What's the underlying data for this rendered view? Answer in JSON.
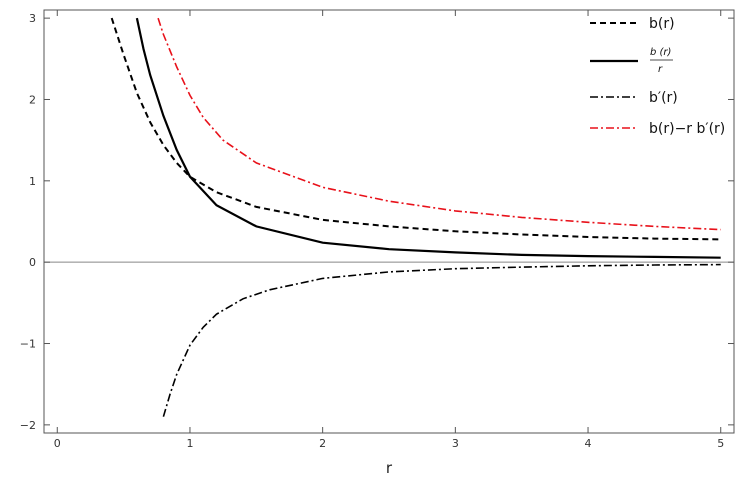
{
  "chart_data": {
    "type": "line",
    "xlabel": "r",
    "xlim": [
      -0.1,
      5.1
    ],
    "ylim": [
      -2.1,
      3.1
    ],
    "xticks": [
      0,
      1,
      2,
      3,
      4,
      5
    ],
    "yticks": [
      -2,
      -1,
      0,
      1,
      2,
      3
    ],
    "xtick_labels": [
      "0",
      "1",
      "2",
      "3",
      "4",
      "5"
    ],
    "ytick_labels": [
      "−2",
      "−1",
      "0",
      "1",
      "2",
      "3"
    ],
    "grid": false,
    "zero_line": true,
    "legend_position": "top-right",
    "series": [
      {
        "name": "b(r)",
        "style": "dashed",
        "color": "#000000",
        "x": [
          0.41,
          0.5,
          0.6,
          0.7,
          0.8,
          0.9,
          1.0,
          1.2,
          1.5,
          2.0,
          2.5,
          3.0,
          3.5,
          4.0,
          4.5,
          5.0
        ],
        "y": [
          3.0,
          2.55,
          2.08,
          1.72,
          1.44,
          1.22,
          1.05,
          0.86,
          0.68,
          0.52,
          0.44,
          0.38,
          0.34,
          0.31,
          0.29,
          0.28
        ]
      },
      {
        "name_top": "b (r)",
        "name_bottom": "r",
        "style": "solid",
        "color": "#000000",
        "x": [
          0.6,
          0.65,
          0.7,
          0.8,
          0.9,
          1.0,
          1.2,
          1.5,
          2.0,
          2.5,
          3.0,
          3.5,
          4.0,
          4.5,
          5.0
        ],
        "y": [
          3.0,
          2.62,
          2.3,
          1.8,
          1.38,
          1.05,
          0.7,
          0.44,
          0.24,
          0.16,
          0.12,
          0.09,
          0.075,
          0.065,
          0.055
        ]
      },
      {
        "name": "b′(r)",
        "style": "dashdot",
        "color": "#000000",
        "x": [
          0.8,
          0.85,
          0.9,
          1.0,
          1.1,
          1.2,
          1.4,
          1.6,
          2.0,
          2.5,
          3.0,
          3.5,
          4.0,
          4.5,
          5.0
        ],
        "y": [
          -1.9,
          -1.62,
          -1.38,
          -1.02,
          -0.8,
          -0.64,
          -0.45,
          -0.34,
          -0.2,
          -0.12,
          -0.08,
          -0.06,
          -0.045,
          -0.035,
          -0.03
        ]
      },
      {
        "name": "b(r)−r b′(r)",
        "style": "dashdot",
        "color": "#e8111a",
        "x": [
          0.76,
          0.8,
          0.9,
          1.0,
          1.1,
          1.25,
          1.5,
          2.0,
          2.5,
          3.0,
          3.5,
          4.0,
          4.5,
          5.0
        ],
        "y": [
          3.0,
          2.8,
          2.4,
          2.05,
          1.78,
          1.5,
          1.22,
          0.92,
          0.75,
          0.63,
          0.55,
          0.49,
          0.44,
          0.4
        ]
      }
    ]
  }
}
